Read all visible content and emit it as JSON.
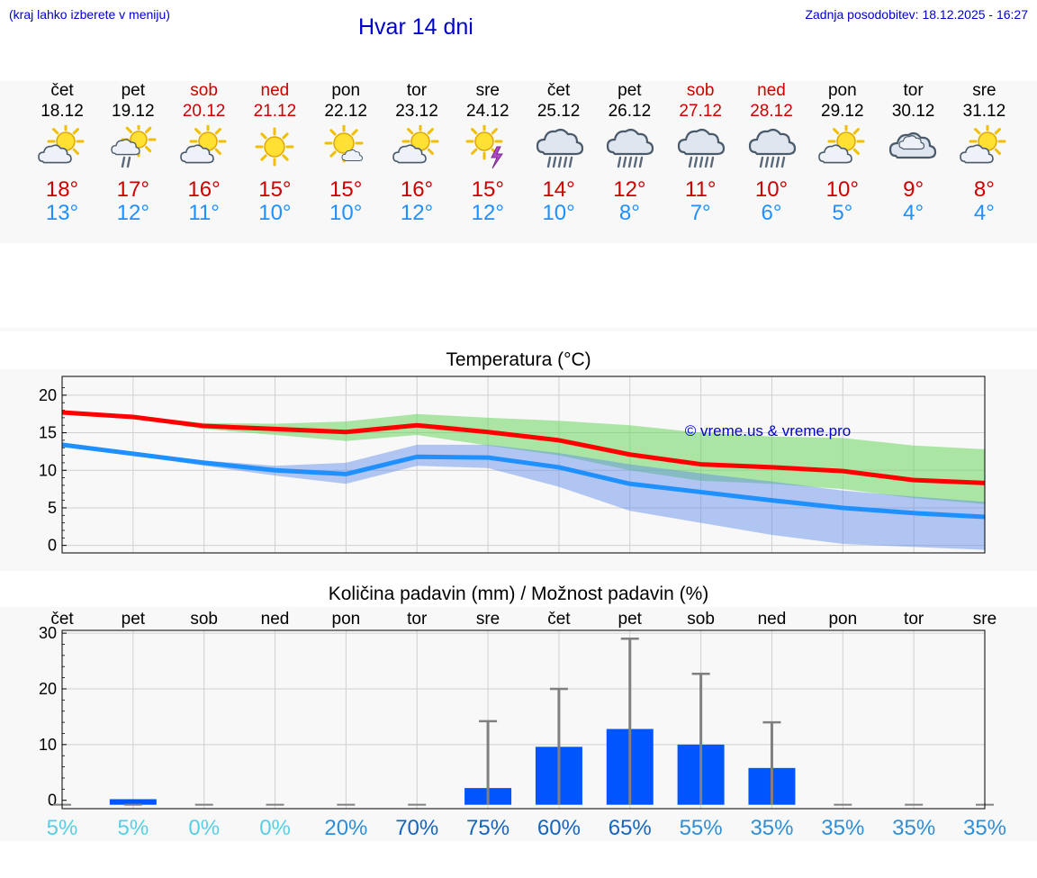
{
  "header": {
    "menu_hint": "(kraj lahko izberete v meniju)",
    "title": "Hvar 14 dni",
    "updated": "Zadnja posodobitev: 18.12.2025 - 16:27"
  },
  "colors": {
    "link": "#0000cc",
    "weekend": "#cc0000",
    "max_temp": "#cc0000",
    "min_temp": "#1e90ff",
    "bar": "#0055ff",
    "max_line": "#ff0000",
    "min_line": "#1e90ff"
  },
  "days": [
    {
      "name": "čet",
      "date": "18.12",
      "weekend": false,
      "icon": "partly-cloudy-icon",
      "max": "18°",
      "min": "13°"
    },
    {
      "name": "pet",
      "date": "19.12",
      "weekend": false,
      "icon": "sun-cloud-drizzle-icon",
      "max": "17°",
      "min": "12°"
    },
    {
      "name": "sob",
      "date": "20.12",
      "weekend": true,
      "icon": "partly-cloudy-icon",
      "max": "16°",
      "min": "11°"
    },
    {
      "name": "ned",
      "date": "21.12",
      "weekend": true,
      "icon": "sunny-icon",
      "max": "15°",
      "min": "10°"
    },
    {
      "name": "pon",
      "date": "22.12",
      "weekend": false,
      "icon": "mostly-sunny-icon",
      "max": "15°",
      "min": "10°"
    },
    {
      "name": "tor",
      "date": "23.12",
      "weekend": false,
      "icon": "partly-cloudy-icon",
      "max": "16°",
      "min": "12°"
    },
    {
      "name": "sre",
      "date": "24.12",
      "weekend": false,
      "icon": "sun-thunder-icon",
      "max": "15°",
      "min": "12°"
    },
    {
      "name": "čet",
      "date": "25.12",
      "weekend": false,
      "icon": "rain-icon",
      "max": "14°",
      "min": "10°"
    },
    {
      "name": "pet",
      "date": "26.12",
      "weekend": false,
      "icon": "rain-icon",
      "max": "12°",
      "min": "8°"
    },
    {
      "name": "sob",
      "date": "27.12",
      "weekend": true,
      "icon": "rain-icon",
      "max": "11°",
      "min": "7°"
    },
    {
      "name": "ned",
      "date": "28.12",
      "weekend": true,
      "icon": "rain-icon",
      "max": "10°",
      "min": "6°"
    },
    {
      "name": "pon",
      "date": "29.12",
      "weekend": false,
      "icon": "partly-cloudy-icon",
      "max": "10°",
      "min": "5°"
    },
    {
      "name": "tor",
      "date": "30.12",
      "weekend": false,
      "icon": "cloudy-icon",
      "max": "9°",
      "min": "4°"
    },
    {
      "name": "sre",
      "date": "31.12",
      "weekend": false,
      "icon": "partly-cloudy-icon",
      "max": "8°",
      "min": "4°"
    }
  ],
  "chart_data": [
    {
      "type": "line",
      "title": "Temperatura (°C)",
      "watermark": "© vreme.us & vreme.pro",
      "ylim": [
        -1,
        22.5
      ],
      "yticks": [
        0,
        5,
        10,
        15,
        20
      ],
      "x": [
        0,
        1,
        2,
        3,
        4,
        5,
        6,
        7,
        8,
        9,
        10,
        11,
        12,
        13
      ],
      "series": [
        {
          "name": "max",
          "values": [
            17.7,
            17.1,
            15.9,
            15.5,
            15.1,
            16.0,
            15.1,
            14.0,
            12.1,
            10.8,
            10.4,
            9.9,
            8.7,
            8.3
          ]
        },
        {
          "name": "min",
          "values": [
            13.4,
            12.2,
            11.0,
            10.0,
            9.5,
            11.8,
            11.7,
            10.4,
            8.2,
            7.1,
            6.0,
            5.0,
            4.3,
            3.8
          ]
        },
        {
          "name": "max_upper",
          "values": [
            17.9,
            17.3,
            16.3,
            16.2,
            16.5,
            17.5,
            17.0,
            16.6,
            16.0,
            15.0,
            14.5,
            14.3,
            13.3,
            12.8
          ]
        },
        {
          "name": "max_lower",
          "values": [
            17.5,
            16.9,
            15.5,
            14.7,
            13.9,
            14.7,
            13.3,
            12.0,
            10.0,
            8.6,
            8.2,
            7.5,
            6.3,
            5.5
          ]
        },
        {
          "name": "min_upper",
          "values": [
            13.6,
            12.4,
            11.3,
            10.6,
            11.0,
            13.4,
            13.4,
            12.3,
            10.8,
            9.6,
            8.5,
            7.3,
            6.5,
            5.8
          ]
        },
        {
          "name": "min_lower",
          "values": [
            13.2,
            12.0,
            10.6,
            9.3,
            8.2,
            10.6,
            10.3,
            7.8,
            4.6,
            3.0,
            1.4,
            0.2,
            -0.2,
            -0.6
          ]
        }
      ]
    },
    {
      "type": "bar",
      "title": "Količina padavin (mm) / Možnost padavin (%)",
      "ylim": [
        -1.5,
        30.5
      ],
      "yticks": [
        0,
        10,
        20,
        30
      ],
      "categories": [
        "čet",
        "pet",
        "sob",
        "ned",
        "pon",
        "tor",
        "sre",
        "čet",
        "pet",
        "sob",
        "ned",
        "pon",
        "tor",
        "sre"
      ],
      "values": [
        0,
        0.2,
        0,
        0,
        0,
        0,
        2.2,
        9.6,
        12.8,
        10.0,
        5.8,
        0,
        0,
        0
      ],
      "upper": [
        0,
        0.4,
        0,
        0,
        0,
        0,
        14.2,
        20.0,
        29.0,
        22.7,
        14.0,
        0,
        0,
        0
      ],
      "probability": [
        "5%",
        "5%",
        "0%",
        "0%",
        "20%",
        "70%",
        "75%",
        "60%",
        "65%",
        "55%",
        "35%",
        "35%",
        "35%",
        "35%"
      ],
      "probability_values": [
        5,
        5,
        0,
        0,
        20,
        70,
        75,
        60,
        65,
        55,
        35,
        35,
        35,
        35
      ]
    }
  ]
}
